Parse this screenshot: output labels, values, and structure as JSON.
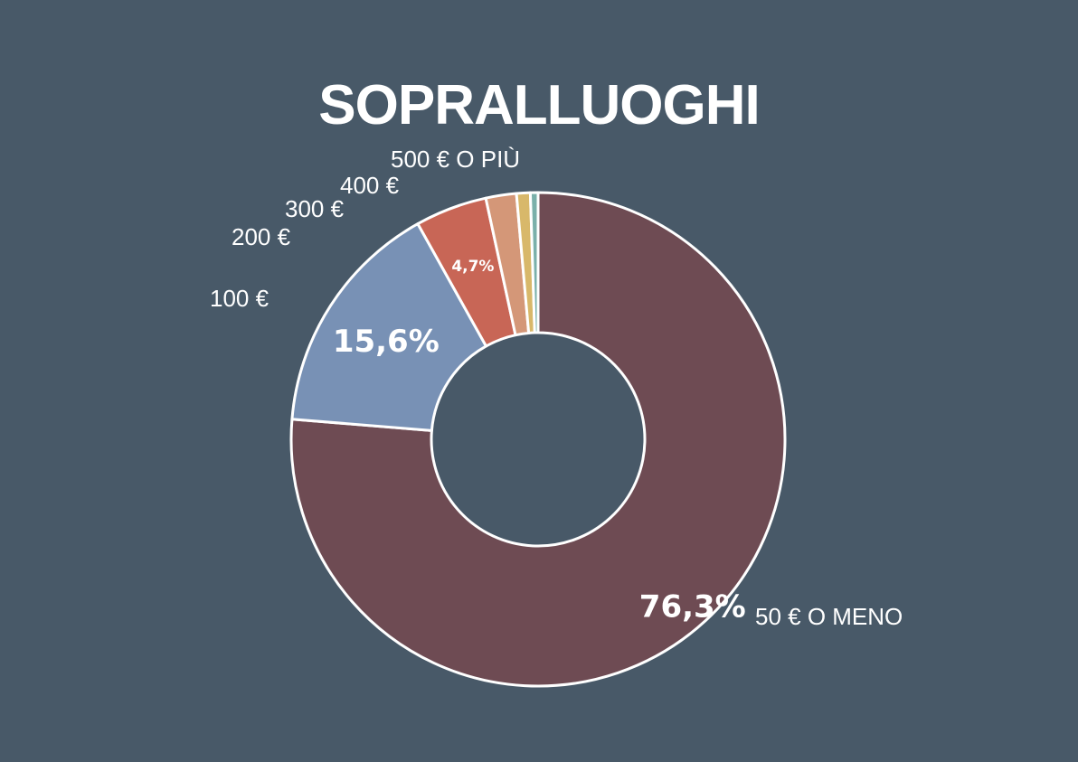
{
  "chart_data": {
    "type": "pie",
    "style": "donut",
    "title": "SOPRALLUOGHI",
    "categories": [
      "50 € O MENO",
      "100 €",
      "200 €",
      "300 €",
      "400 €",
      "500 € O PIÙ"
    ],
    "values": [
      76.3,
      15.6,
      4.7,
      2.0,
      0.9,
      0.5
    ],
    "value_labels": [
      "76,3%",
      "15,6%",
      "4,7%",
      "",
      "",
      ""
    ],
    "colors": [
      "#6e4b53",
      "#7891b5",
      "#c86656",
      "#d49778",
      "#d8b86a",
      "#7ab0aa"
    ],
    "background": "#485968",
    "slice_border": "#ffffff"
  }
}
